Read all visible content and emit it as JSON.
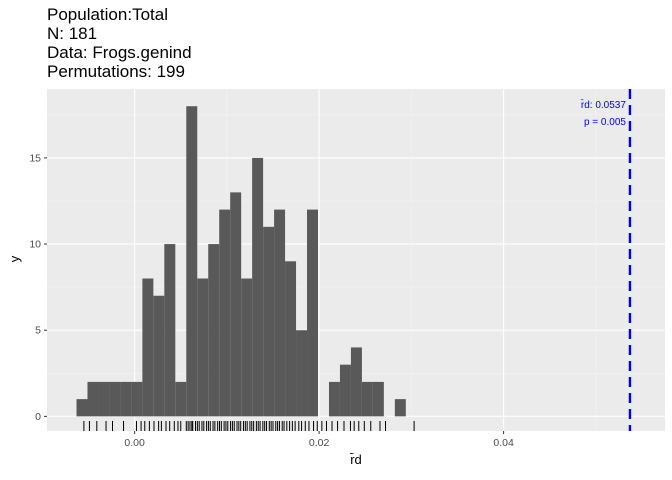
{
  "chart_data": {
    "type": "bar",
    "title_lines": [
      "Population:Total",
      "N: 181",
      "Data: Frogs.genind",
      "Permutations: 199"
    ],
    "xlabel": "r̄d",
    "ylabel": "y",
    "xlim": [
      -0.0095,
      0.0575
    ],
    "ylim": [
      -0.85,
      19.0
    ],
    "x_ticks": [
      0.0,
      0.02,
      0.04
    ],
    "x_tick_labels": [
      "0.00",
      "0.02",
      "0.04"
    ],
    "y_ticks": [
      0,
      5,
      10,
      15
    ],
    "y_tick_labels": [
      "0",
      "5",
      "10",
      "15"
    ],
    "grid": true,
    "bin_start": -0.0063,
    "bin_width": 0.00119,
    "values": [
      1,
      2,
      2,
      2,
      2,
      2,
      8,
      7,
      10,
      2,
      18,
      8,
      10,
      12,
      13,
      8,
      15,
      11,
      12,
      9,
      5,
      12,
      0,
      2,
      3,
      4,
      2,
      2,
      0,
      1
    ],
    "rug_x": [
      -0.0055,
      -0.0049,
      -0.0041,
      -0.0031,
      -0.0024,
      -0.0012,
      0.0002,
      0.0007,
      0.0011,
      0.0016,
      0.0021,
      0.0026,
      0.0029,
      0.0034,
      0.0038,
      0.0043,
      0.0047,
      0.005,
      0.0056,
      0.0058,
      0.006,
      0.0062,
      0.0063,
      0.0066,
      0.0068,
      0.007,
      0.0073,
      0.0075,
      0.0078,
      0.008,
      0.0082,
      0.0085,
      0.0087,
      0.009,
      0.0092,
      0.0094,
      0.0097,
      0.0099,
      0.0101,
      0.0104,
      0.0106,
      0.0108,
      0.0111,
      0.0113,
      0.0115,
      0.0118,
      0.012,
      0.0122,
      0.0125,
      0.0127,
      0.0129,
      0.0132,
      0.0134,
      0.0136,
      0.0139,
      0.0141,
      0.0143,
      0.0146,
      0.0148,
      0.015,
      0.0153,
      0.0155,
      0.0157,
      0.016,
      0.0162,
      0.0165,
      0.0168,
      0.0171,
      0.0174,
      0.0178,
      0.0181,
      0.0185,
      0.0189,
      0.0194,
      0.0198,
      0.0203,
      0.0208,
      0.0214,
      0.022,
      0.0227,
      0.0234,
      0.0238,
      0.0243,
      0.0249,
      0.0256,
      0.0266,
      0.0272,
      0.0303
    ],
    "observed": {
      "label": "r̄d: 0.0537",
      "value": 0.0537,
      "p_label": "p = 0.005",
      "color": "#0000ff"
    },
    "colors": {
      "bar": "#595959",
      "panel": "#ebebeb",
      "grid_major": "#ffffff",
      "grid_minor": "#f4f4f4"
    }
  }
}
